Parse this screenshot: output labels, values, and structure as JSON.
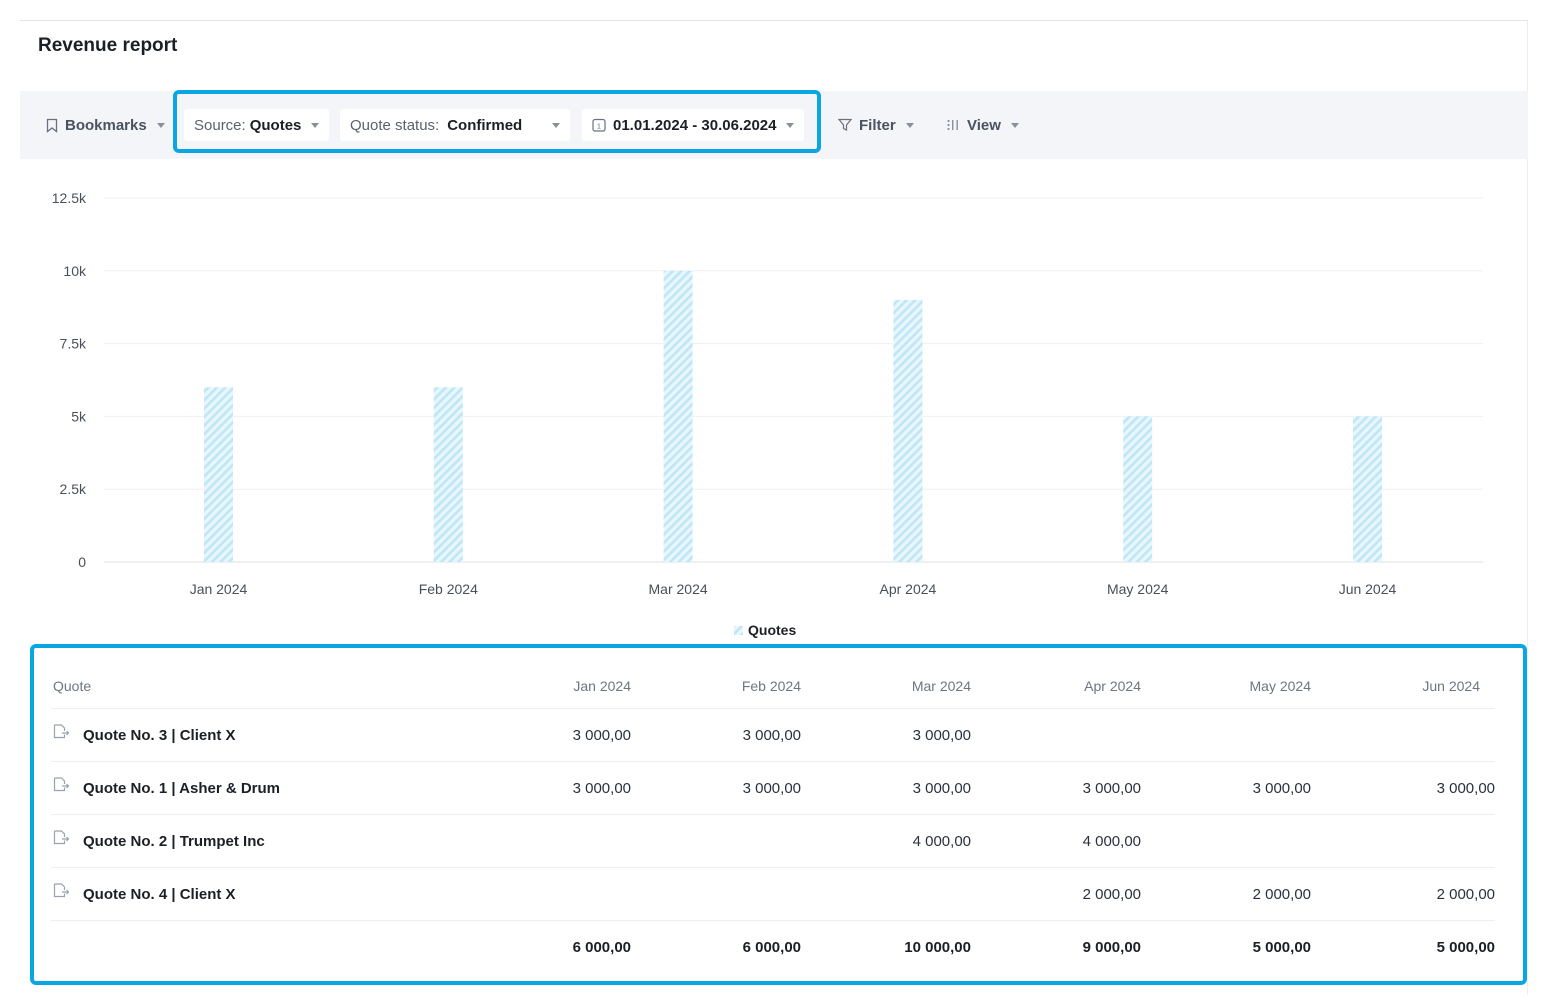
{
  "page": {
    "title": "Revenue report"
  },
  "toolbar": {
    "bookmarks_label": "Bookmarks",
    "source_prefix": "Source:",
    "source_value": "Quotes",
    "status_prefix": "Quote status:",
    "status_value": "Confirmed",
    "date_range": "01.01.2024 - 30.06.2024",
    "filter_label": "Filter",
    "view_label": "View"
  },
  "chart_data": {
    "type": "bar",
    "categories": [
      "Jan 2024",
      "Feb 2024",
      "Mar 2024",
      "Apr 2024",
      "May 2024",
      "Jun 2024"
    ],
    "series": [
      {
        "name": "Quotes",
        "values": [
          6000,
          6000,
          10000,
          9000,
          5000,
          5000
        ]
      }
    ],
    "ylim": [
      0,
      12500
    ],
    "yticks": [
      0,
      2500,
      5000,
      7500,
      10000,
      12500
    ],
    "ytick_labels": [
      "0",
      "2.5k",
      "5k",
      "7.5k",
      "10k",
      "12.5k"
    ],
    "grid": true,
    "legend": "bottom-center",
    "bar_color": "#bfe6f7"
  },
  "table": {
    "columns": [
      "Quote",
      "Jan 2024",
      "Feb 2024",
      "Mar 2024",
      "Apr 2024",
      "May 2024",
      "Jun 2024"
    ],
    "rows": [
      {
        "name": "Quote No. 3 | Client X",
        "values": [
          "3 000,00",
          "3 000,00",
          "3 000,00",
          "",
          "",
          ""
        ]
      },
      {
        "name": "Quote No. 1 | Asher & Drum",
        "values": [
          "3 000,00",
          "3 000,00",
          "3 000,00",
          "3 000,00",
          "3 000,00",
          "3 000,00"
        ]
      },
      {
        "name": "Quote No. 2 | Trumpet Inc",
        "values": [
          "",
          "",
          "4 000,00",
          "4 000,00",
          "",
          ""
        ]
      },
      {
        "name": "Quote No. 4 | Client X",
        "values": [
          "",
          "",
          "",
          "2 000,00",
          "2 000,00",
          "2 000,00"
        ]
      }
    ],
    "totals": [
      "6 000,00",
      "6 000,00",
      "10 000,00",
      "9 000,00",
      "5 000,00",
      "5 000,00"
    ]
  },
  "colors": {
    "highlight": "#0aa5e3",
    "toolbar_bg": "#f4f5f8",
    "bar": "#bfe6f7"
  }
}
